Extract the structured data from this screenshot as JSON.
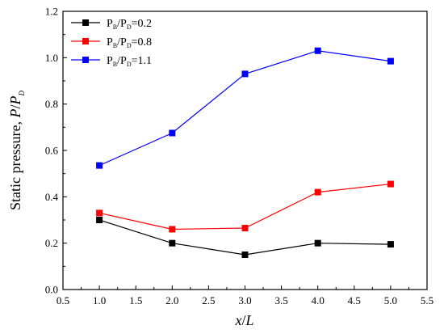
{
  "chart_data": {
    "type": "line",
    "xlabel": {
      "main": "x",
      "sep": "/",
      "italic_tail": "L"
    },
    "ylabel": {
      "prefix": "Static pressure, ",
      "var1": "P",
      "sep": "/",
      "var2": "P",
      "sub": "D"
    },
    "xlim": [
      0.5,
      5.5
    ],
    "ylim": [
      0.0,
      1.2
    ],
    "xticks": [
      0.5,
      1.0,
      1.5,
      2.0,
      2.5,
      3.0,
      3.5,
      4.0,
      4.5,
      5.0,
      5.5
    ],
    "xtick_labels": [
      "0.5",
      "1.0",
      "1.5",
      "2.0",
      "2.5",
      "3.0",
      "3.5",
      "4.0",
      "4.5",
      "5.0",
      "5.5"
    ],
    "yticks": [
      0.0,
      0.2,
      0.4,
      0.6,
      0.8,
      1.0,
      1.2
    ],
    "ytick_labels": [
      "0.0",
      "0.2",
      "0.4",
      "0.6",
      "0.8",
      "1.0",
      "1.2"
    ],
    "legend_position": "top-left",
    "grid": false,
    "x": [
      1.0,
      2.0,
      3.0,
      4.0,
      5.0
    ],
    "series": [
      {
        "name": "P_B/P_D=0.2",
        "label_parts": {
          "a": "P",
          "a_sub": "B",
          "sep": "/",
          "b": "P",
          "b_sub": "D",
          "tail": "=0.2"
        },
        "color": "#000000",
        "values": [
          0.3,
          0.2,
          0.15,
          0.2,
          0.195
        ]
      },
      {
        "name": "P_B/P_D=0.8",
        "label_parts": {
          "a": "P",
          "a_sub": "B",
          "sep": "/",
          "b": "P",
          "b_sub": "D",
          "tail": "=0.8"
        },
        "color": "#ff0000",
        "values": [
          0.33,
          0.26,
          0.265,
          0.42,
          0.455
        ]
      },
      {
        "name": "P_B/P_D=1.1",
        "label_parts": {
          "a": "P",
          "a_sub": "B",
          "sep": "/",
          "b": "P",
          "b_sub": "D",
          "tail": "=1.1"
        },
        "color": "#0000ff",
        "values": [
          0.535,
          0.675,
          0.93,
          1.03,
          0.985
        ]
      }
    ]
  }
}
